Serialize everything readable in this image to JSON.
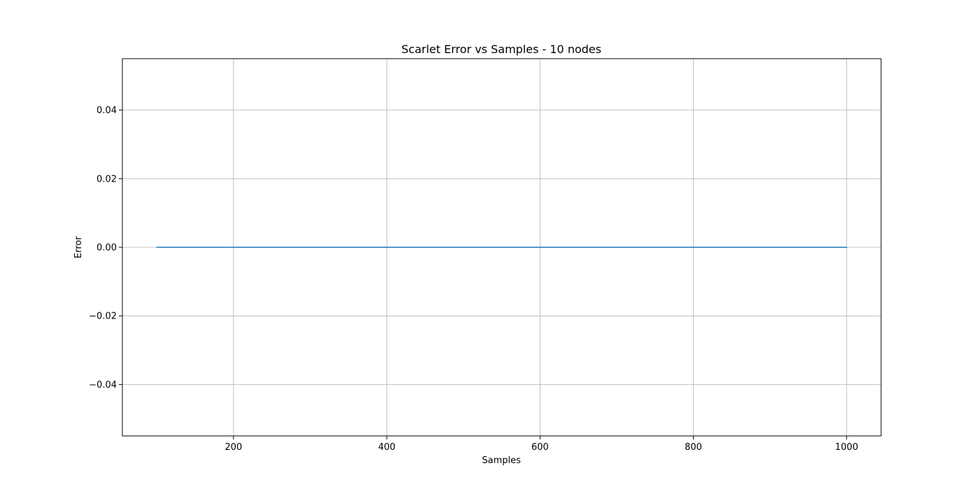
{
  "chart_data": {
    "type": "line",
    "title": "Scarlet Error vs Samples - 10 nodes",
    "xlabel": "Samples",
    "ylabel": "Error",
    "xlim": [
      55,
      1045
    ],
    "ylim": [
      -0.055,
      0.055
    ],
    "xticks": [
      200,
      400,
      600,
      800,
      1000
    ],
    "xtick_labels": [
      "200",
      "400",
      "600",
      "800",
      "1000"
    ],
    "yticks": [
      -0.04,
      -0.02,
      0.0,
      0.02,
      0.04
    ],
    "ytick_labels": [
      "−0.04",
      "−0.02",
      "0.00",
      "0.02",
      "0.04"
    ],
    "grid": true,
    "series": [
      {
        "color": "#1f77b4",
        "x": [
          100,
          200,
          300,
          400,
          500,
          600,
          700,
          800,
          900,
          1000
        ],
        "y": [
          0,
          0,
          0,
          0,
          0,
          0,
          0,
          0,
          0,
          0
        ]
      }
    ]
  }
}
